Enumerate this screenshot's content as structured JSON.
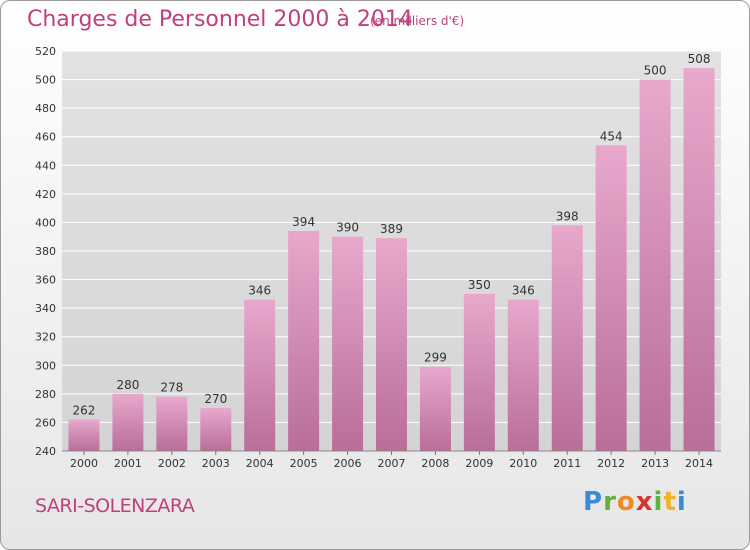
{
  "title": "Charges de Personnel 2000 à 2014",
  "subtitle": "(en milliers d'€)",
  "city": "SARI-SOLENZARA",
  "logo": {
    "letters": [
      "P",
      "r",
      "o",
      "x",
      "i",
      "t",
      "i"
    ],
    "colors": [
      "#3a8ad6",
      "#5fb33b",
      "#f08a24",
      "#d8332c",
      "#5fb33b",
      "#f0b323",
      "#3a8ad6"
    ]
  },
  "colors": {
    "bar_top": "#e8a8cc",
    "bar_bottom": "#b86e98",
    "accent": "#c0407f",
    "grid": "#ffffff",
    "axis_text": "#333333"
  },
  "chart_data": {
    "type": "bar",
    "categories": [
      "2000",
      "2001",
      "2002",
      "2003",
      "2004",
      "2005",
      "2006",
      "2007",
      "2008",
      "2009",
      "2010",
      "2011",
      "2012",
      "2013",
      "2014"
    ],
    "values": [
      262,
      280,
      278,
      270,
      346,
      394,
      390,
      389,
      299,
      350,
      346,
      398,
      454,
      500,
      508
    ],
    "ylim": [
      240,
      520
    ],
    "yticks": [
      240,
      260,
      280,
      300,
      320,
      340,
      360,
      380,
      400,
      420,
      440,
      460,
      480,
      500,
      520
    ],
    "title": "Charges de Personnel 2000 à 2014",
    "xlabel": "",
    "ylabel": "",
    "grid": true
  }
}
